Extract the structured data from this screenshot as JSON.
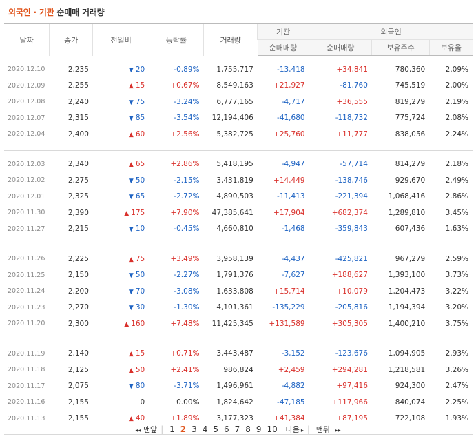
{
  "title": {
    "part1": "외국인 · 기관",
    "part2": "순매매 거래량"
  },
  "headers": {
    "date": "날짜",
    "close": "종가",
    "change": "전일비",
    "rate": "등락률",
    "volume": "거래량",
    "inst_group": "기관",
    "foreign_group": "외국인",
    "inst_net": "순매매량",
    "foreign_net": "순매매량",
    "holding": "보유주수",
    "ratio": "보유율"
  },
  "groups": [
    [
      {
        "date": "2020.12.10",
        "close": "2,235",
        "dir": "down",
        "chg": "20",
        "rate": "-0.89%",
        "vol": "1,755,717",
        "inst": "-13,418",
        "frn": "+34,841",
        "hold": "780,360",
        "ratio": "2.09%"
      },
      {
        "date": "2020.12.09",
        "close": "2,255",
        "dir": "up",
        "chg": "15",
        "rate": "+0.67%",
        "vol": "8,549,163",
        "inst": "+21,927",
        "frn": "-81,760",
        "hold": "745,519",
        "ratio": "2.00%"
      },
      {
        "date": "2020.12.08",
        "close": "2,240",
        "dir": "down",
        "chg": "75",
        "rate": "-3.24%",
        "vol": "6,777,165",
        "inst": "-4,717",
        "frn": "+36,555",
        "hold": "819,279",
        "ratio": "2.19%"
      },
      {
        "date": "2020.12.07",
        "close": "2,315",
        "dir": "down",
        "chg": "85",
        "rate": "-3.54%",
        "vol": "12,194,406",
        "inst": "-41,680",
        "frn": "-118,732",
        "hold": "775,724",
        "ratio": "2.08%"
      },
      {
        "date": "2020.12.04",
        "close": "2,400",
        "dir": "up",
        "chg": "60",
        "rate": "+2.56%",
        "vol": "5,382,725",
        "inst": "+25,760",
        "frn": "+11,777",
        "hold": "838,056",
        "ratio": "2.24%"
      }
    ],
    [
      {
        "date": "2020.12.03",
        "close": "2,340",
        "dir": "up",
        "chg": "65",
        "rate": "+2.86%",
        "vol": "5,418,195",
        "inst": "-4,947",
        "frn": "-57,714",
        "hold": "814,279",
        "ratio": "2.18%"
      },
      {
        "date": "2020.12.02",
        "close": "2,275",
        "dir": "down",
        "chg": "50",
        "rate": "-2.15%",
        "vol": "3,431,819",
        "inst": "+14,449",
        "frn": "-138,746",
        "hold": "929,670",
        "ratio": "2.49%"
      },
      {
        "date": "2020.12.01",
        "close": "2,325",
        "dir": "down",
        "chg": "65",
        "rate": "-2.72%",
        "vol": "4,890,503",
        "inst": "-11,413",
        "frn": "-221,394",
        "hold": "1,068,416",
        "ratio": "2.86%"
      },
      {
        "date": "2020.11.30",
        "close": "2,390",
        "dir": "up",
        "chg": "175",
        "rate": "+7.90%",
        "vol": "47,385,641",
        "inst": "+17,904",
        "frn": "+682,374",
        "hold": "1,289,810",
        "ratio": "3.45%"
      },
      {
        "date": "2020.11.27",
        "close": "2,215",
        "dir": "down",
        "chg": "10",
        "rate": "-0.45%",
        "vol": "4,660,810",
        "inst": "-1,468",
        "frn": "-359,843",
        "hold": "607,436",
        "ratio": "1.63%"
      }
    ],
    [
      {
        "date": "2020.11.26",
        "close": "2,225",
        "dir": "up",
        "chg": "75",
        "rate": "+3.49%",
        "vol": "3,958,139",
        "inst": "-4,437",
        "frn": "-425,821",
        "hold": "967,279",
        "ratio": "2.59%"
      },
      {
        "date": "2020.11.25",
        "close": "2,150",
        "dir": "down",
        "chg": "50",
        "rate": "-2.27%",
        "vol": "1,791,376",
        "inst": "-7,627",
        "frn": "+188,627",
        "hold": "1,393,100",
        "ratio": "3.73%"
      },
      {
        "date": "2020.11.24",
        "close": "2,200",
        "dir": "down",
        "chg": "70",
        "rate": "-3.08%",
        "vol": "1,633,808",
        "inst": "+15,714",
        "frn": "+10,079",
        "hold": "1,204,473",
        "ratio": "3.22%"
      },
      {
        "date": "2020.11.23",
        "close": "2,270",
        "dir": "down",
        "chg": "30",
        "rate": "-1.30%",
        "vol": "4,101,361",
        "inst": "-135,229",
        "frn": "-205,816",
        "hold": "1,194,394",
        "ratio": "3.20%"
      },
      {
        "date": "2020.11.20",
        "close": "2,300",
        "dir": "up",
        "chg": "160",
        "rate": "+7.48%",
        "vol": "11,425,345",
        "inst": "+131,589",
        "frn": "+305,305",
        "hold": "1,400,210",
        "ratio": "3.75%"
      }
    ],
    [
      {
        "date": "2020.11.19",
        "close": "2,140",
        "dir": "up",
        "chg": "15",
        "rate": "+0.71%",
        "vol": "3,443,487",
        "inst": "-3,152",
        "frn": "-123,676",
        "hold": "1,094,905",
        "ratio": "2.93%"
      },
      {
        "date": "2020.11.18",
        "close": "2,125",
        "dir": "up",
        "chg": "50",
        "rate": "+2.41%",
        "vol": "986,824",
        "inst": "+2,459",
        "frn": "+294,281",
        "hold": "1,218,581",
        "ratio": "3.26%"
      },
      {
        "date": "2020.11.17",
        "close": "2,075",
        "dir": "down",
        "chg": "80",
        "rate": "-3.71%",
        "vol": "1,496,961",
        "inst": "-4,882",
        "frn": "+97,416",
        "hold": "924,300",
        "ratio": "2.47%"
      },
      {
        "date": "2020.11.16",
        "close": "2,155",
        "dir": "zero",
        "chg": "0",
        "rate": "0.00%",
        "vol": "1,824,642",
        "inst": "-47,185",
        "frn": "+117,966",
        "hold": "840,074",
        "ratio": "2.25%"
      },
      {
        "date": "2020.11.13",
        "close": "2,155",
        "dir": "up",
        "chg": "40",
        "rate": "+1.89%",
        "vol": "3,177,323",
        "inst": "+41,384",
        "frn": "+87,195",
        "hold": "722,108",
        "ratio": "1.93%"
      }
    ]
  ],
  "icons": {
    "up": "▲",
    "down": "▼"
  },
  "pager": {
    "first": "맨앞",
    "pages": [
      "1",
      "2",
      "3",
      "4",
      "5",
      "6",
      "7",
      "8",
      "9",
      "10"
    ],
    "current": "2",
    "next": "다음",
    "last": "맨뒤"
  },
  "colors": {
    "up": "#d9302b",
    "down": "#1e63c3",
    "accent": "#e0541b"
  }
}
